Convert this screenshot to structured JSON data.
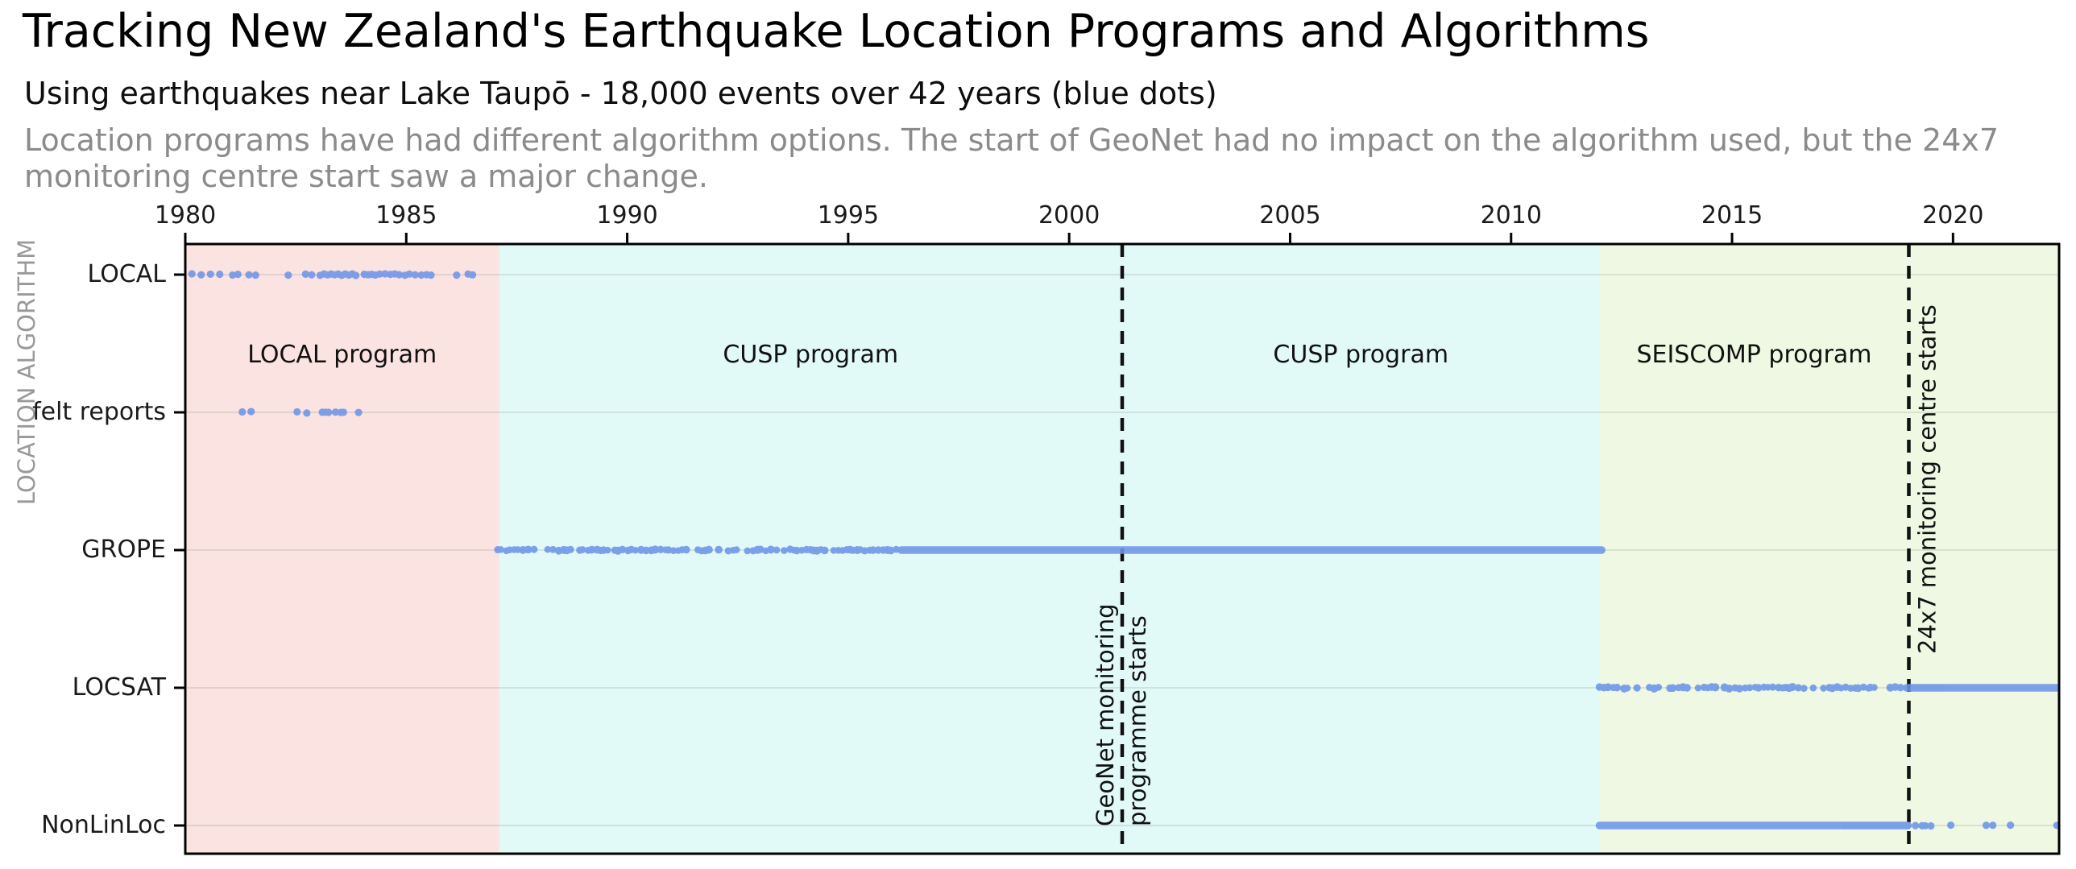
{
  "chart_data": {
    "type": "scatter",
    "title": "Tracking New Zealand's Earthquake Location Programs and Algorithms",
    "subtitle": "Using earthquakes near Lake Taupō - 18,000 events over 42 years (blue dots)",
    "description_lines": [
      "Location programs have had different algorithm options. The start of GeoNet had no impact on the algorithm used, but the 24x7",
      "monitoring centre start saw a major change."
    ],
    "ylabel": "LOCATION ALGORITHM",
    "x_min": 1980,
    "x_max": 2022.4,
    "x_ticks": [
      1980,
      1985,
      1990,
      1995,
      2000,
      2005,
      2010,
      2015,
      2020
    ],
    "categories": [
      "LOCAL",
      "felt reports",
      "GROPE",
      "LOCSAT",
      "NonLinLoc"
    ],
    "dot_color": "#6d95e8",
    "grid_color": "rgba(120,120,120,0.18)",
    "axis_color": "#000000",
    "event_line_color": "#111111",
    "regions": [
      {
        "label": "LOCAL program",
        "start": 1980.0,
        "end": 1987.1,
        "color": "#fae3e0"
      },
      {
        "label": "CUSP program",
        "start": 1987.1,
        "end": 2001.2,
        "color": "#e1faf7"
      },
      {
        "label": "CUSP program",
        "start": 2001.2,
        "end": 2012.0,
        "color": "#e1faf7"
      },
      {
        "label": "SEISCOMP program",
        "start": 2012.0,
        "end": 2022.4,
        "color": "#eef8e3",
        "label_center": 2015.5
      }
    ],
    "events": [
      {
        "year": 2001.2,
        "label_lines": [
          "GeoNet monitoring",
          "programme starts"
        ]
      },
      {
        "year": 2019.0,
        "label_lines": [
          "24x7 monitoring centre starts"
        ]
      }
    ],
    "rows": [
      {
        "category": "LOCAL",
        "points": [
          1980.15,
          1980.36,
          1980.57,
          1980.78,
          1981.07,
          1981.19,
          1981.44,
          1981.59,
          1982.33,
          1982.72,
          1982.86,
          1983.05,
          1983.14,
          1983.22,
          1983.3,
          1983.38,
          1983.46,
          1983.54,
          1983.62,
          1983.7,
          1983.78,
          1983.86,
          1984.05,
          1984.14,
          1984.22,
          1984.3,
          1984.4,
          1984.52,
          1984.64,
          1984.74,
          1984.84,
          1984.97,
          1985.07,
          1985.2,
          1985.34,
          1985.46,
          1985.56,
          1986.14,
          1986.4,
          1986.5
        ],
        "segments": []
      },
      {
        "category": "felt reports",
        "points": [
          1981.29,
          1981.49,
          1982.53,
          1982.75,
          1983.1,
          1983.17,
          1983.24,
          1983.4,
          1983.52,
          1983.58,
          1983.92
        ],
        "segments": []
      },
      {
        "category": "GROPE",
        "points": [],
        "segments": [
          {
            "from": 1987.07,
            "to": 1987.98,
            "style": "dense"
          },
          {
            "from": 1988.2,
            "to": 1989.65,
            "style": "dense"
          },
          {
            "from": 1989.72,
            "to": 1991.45,
            "style": "dense"
          },
          {
            "from": 1991.6,
            "to": 1991.92,
            "style": "dense"
          },
          {
            "from": 1992.07,
            "to": 1992.5,
            "style": "dense"
          },
          {
            "from": 1992.72,
            "to": 1993.45,
            "style": "dense"
          },
          {
            "from": 1993.55,
            "to": 1996.2,
            "style": "dense"
          },
          {
            "from": 1996.2,
            "to": 2012.05,
            "style": "solid"
          }
        ]
      },
      {
        "category": "LOCSAT",
        "points": [
          2012.85
        ],
        "segments": [
          {
            "from": 2012.0,
            "to": 2012.5,
            "style": "dense"
          },
          {
            "from": 2012.56,
            "to": 2012.68,
            "style": "dense"
          },
          {
            "from": 2013.13,
            "to": 2013.75,
            "style": "dense"
          },
          {
            "from": 2013.79,
            "to": 2014.69,
            "style": "dense"
          },
          {
            "from": 2014.83,
            "to": 2018.09,
            "style": "dense"
          },
          {
            "from": 2018.13,
            "to": 2018.47,
            "style": "dense"
          },
          {
            "from": 2018.58,
            "to": 2018.85,
            "style": "dense"
          },
          {
            "from": 2018.95,
            "to": 2022.38,
            "style": "solid"
          }
        ]
      },
      {
        "category": "NonLinLoc",
        "points": [
          2019.15,
          2019.3,
          2019.37,
          2019.5,
          2019.95,
          2020.75,
          2020.9,
          2021.3,
          2022.35
        ],
        "segments": [
          {
            "from": 2012.0,
            "to": 2018.98,
            "style": "solid"
          }
        ]
      }
    ]
  }
}
